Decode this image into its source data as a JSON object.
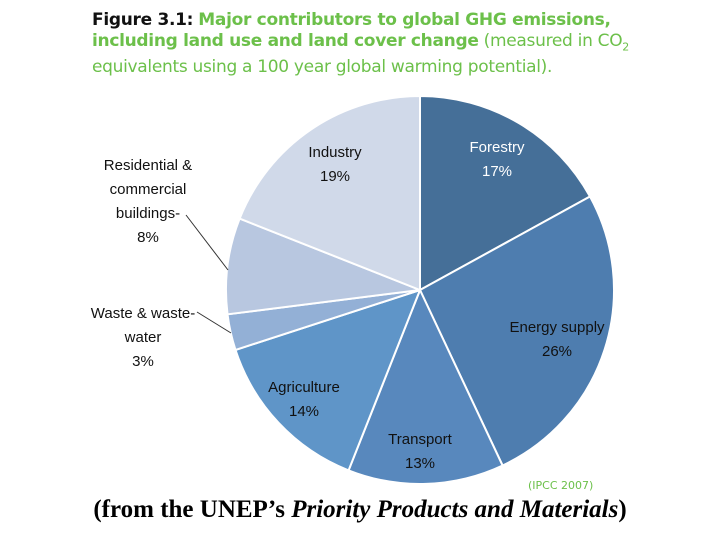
{
  "title": {
    "figure_label": "Figure 3.1:",
    "bold_text": "Major contributors to global GHG emissions, including land use and land cover change",
    "normal_text_1": "(measured in CO",
    "subscript": "2",
    "normal_text_2": " equivalents using a 100 year global warming potential)."
  },
  "source": "(IPCC 2007)",
  "caption": {
    "prefix": "(from the UNEP’s ",
    "italic": "Priority Products and Materials",
    "suffix": ")"
  },
  "chart_data": {
    "type": "pie",
    "start": "12 o'clock, clockwise",
    "categories": [
      "Forestry",
      "Energy supply",
      "Transport",
      "Agriculture",
      "Waste & waste-water",
      "Residential & commercial buildings",
      "Industry"
    ],
    "values": [
      17,
      26,
      13,
      14,
      3,
      8,
      19
    ],
    "labels": [
      {
        "lines": [
          "Forestry",
          "17%"
        ]
      },
      {
        "lines": [
          "Energy supply",
          "26%"
        ]
      },
      {
        "lines": [
          "Transport",
          "13%"
        ]
      },
      {
        "lines": [
          "Agriculture",
          "14%"
        ]
      },
      {
        "lines": [
          "Waste & waste-",
          "water",
          "3%"
        ]
      },
      {
        "lines": [
          "Residential &",
          "commercial",
          "buildings-",
          "8%"
        ]
      },
      {
        "lines": [
          "Industry",
          "19%"
        ]
      }
    ],
    "colors": [
      "#456f98",
      "#4e7daf",
      "#5888bd",
      "#5f95c8",
      "#93b0d6",
      "#b8c7e0",
      "#d0d9e9"
    ],
    "label_colors": [
      "#ffffff",
      "#111111",
      "#111111",
      "#111111",
      "#111111",
      "#111111",
      "#111111"
    ]
  }
}
